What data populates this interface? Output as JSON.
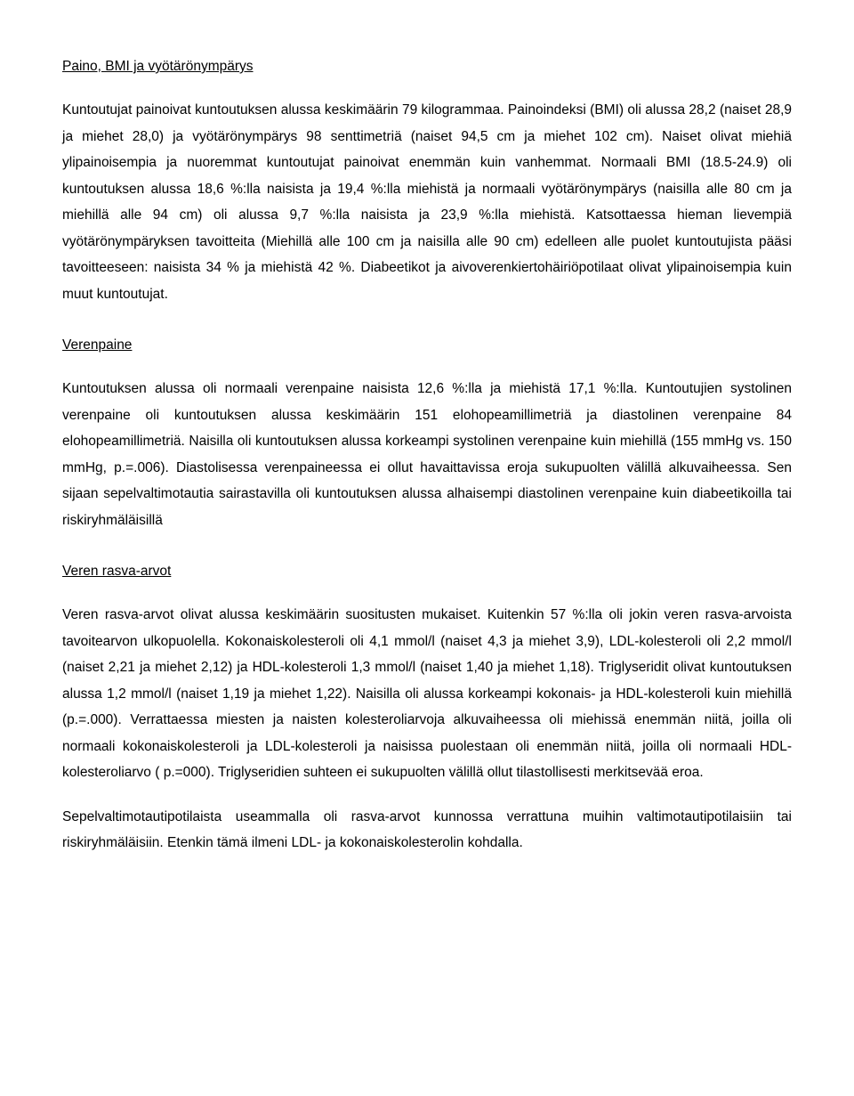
{
  "sections": [
    {
      "heading": "Paino, BMI ja vyötärönympärys",
      "paragraphs": [
        "Kuntoutujat painoivat kuntoutuksen alussa keskimäärin 79 kilogrammaa. Painoindeksi (BMI) oli alussa 28,2 (naiset 28,9 ja miehet 28,0) ja vyötärönympärys 98 senttimetriä (naiset 94,5 cm ja miehet 102 cm). Naiset olivat miehiä ylipainoisempia ja nuoremmat kuntoutujat painoivat enemmän kuin vanhemmat. Normaali BMI (18.5-24.9) oli kuntoutuksen alussa 18,6 %:lla naisista ja 19,4 %:lla miehistä ja normaali vyötärönympärys (naisilla alle 80 cm ja miehillä alle 94 cm) oli alussa 9,7 %:lla naisista ja 23,9 %:lla miehistä. Katsottaessa hieman lievempiä vyötärönympäryksen tavoitteita (Miehillä alle 100 cm ja naisilla alle 90 cm) edelleen alle puolet kuntoutujista pääsi tavoitteeseen: naisista 34 % ja miehistä 42 %. Diabeetikot ja aivoverenkiertohäiriöpotilaat olivat ylipainoisempia kuin muut kuntoutujat."
      ]
    },
    {
      "heading": "Verenpaine",
      "paragraphs": [
        "Kuntoutuksen alussa oli normaali verenpaine naisista 12,6 %:lla ja miehistä 17,1 %:lla. Kuntoutujien systolinen verenpaine oli kuntoutuksen alussa keskimäärin 151 elohopeamillimetriä ja diastolinen verenpaine 84 elohopeamillimetriä. Naisilla oli kuntoutuksen alussa korkeampi systolinen verenpaine kuin miehillä (155 mmHg vs. 150 mmHg, p.=.006). Diastolisessa verenpaineessa ei ollut havaittavissa eroja sukupuolten välillä alkuvaiheessa. Sen sijaan sepelvaltimotautia sairastavilla oli kuntoutuksen alussa alhaisempi diastolinen verenpaine kuin diabeetikoilla tai riskiryhmäläisillä"
      ]
    },
    {
      "heading": "Veren rasva-arvot",
      "paragraphs": [
        "Veren rasva-arvot olivat alussa keskimäärin suositusten mukaiset. Kuitenkin 57 %:lla oli jokin veren rasva-arvoista tavoitearvon ulkopuolella. Kokonaiskolesteroli oli 4,1 mmol/l (naiset 4,3 ja miehet 3,9), LDL-kolesteroli oli 2,2 mmol/l (naiset 2,21 ja miehet 2,12) ja HDL-kolesteroli 1,3 mmol/l (naiset 1,40 ja miehet 1,18). Triglyseridit olivat kuntoutuksen alussa 1,2 mmol/l (naiset 1,19 ja miehet 1,22). Naisilla oli alussa korkeampi kokonais- ja HDL-kolesteroli kuin miehillä (p.=.000). Verrattaessa miesten ja naisten kolesteroliarvoja alkuvaiheessa oli miehissä enemmän niitä, joilla oli normaali kokonaiskolesteroli ja LDL-kolesteroli ja naisissa puolestaan oli enemmän niitä, joilla oli normaali HDL-kolesteroliarvo ( p.=000). Triglyseridien suhteen ei sukupuolten välillä ollut tilastollisesti merkitsevää eroa.",
        "Sepelvaltimotautipotilaista useammalla oli rasva-arvot kunnossa verrattuna muihin valtimotautipotilaisiin tai riskiryhmäläisiin. Etenkin tämä ilmeni LDL- ja kokonaiskolesterolin kohdalla."
      ]
    }
  ]
}
